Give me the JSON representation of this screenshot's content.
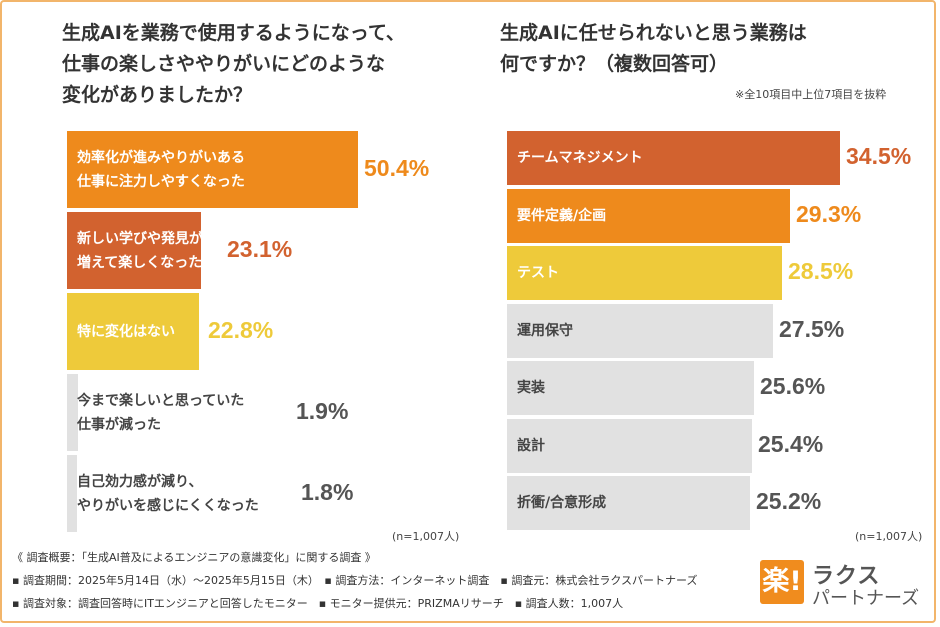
{
  "colors": {
    "orange": "#ee8a1c",
    "rust": "#d2622f",
    "yellow": "#eeca3a",
    "gray": "#e1e1e1",
    "frame": "#f2b56b"
  },
  "chart_data": [
    {
      "type": "bar",
      "orientation": "horizontal",
      "title": "生成AIを業務で使用するようになって、\n仕事の楽しさややりがいにどのような\n変化がありましたか？",
      "categories": [
        "効率化が進みやりがいある\n仕事に注力しやすくなった",
        "新しい学びや発見が\n増えて楽しくなった",
        "特に変化はない",
        "今まで楽しいと思っていた\n仕事が減った",
        "自己効力感が減り、\nやりがいを感じにくくなった"
      ],
      "values": [
        50.4,
        23.1,
        22.8,
        1.9,
        1.8
      ],
      "value_labels": [
        "50.4%",
        "23.1%",
        "22.8%",
        "1.9%",
        "1.8%"
      ],
      "sample_note": "(n=1,007人)",
      "xlim": [
        0,
        100
      ]
    },
    {
      "type": "bar",
      "orientation": "horizontal",
      "title": "生成AIに任せられないと思う業務は\n何ですか？（複数回答可）",
      "subtitle": "※全10項目中上位7項目を抜粋",
      "categories": [
        "チームマネジメント",
        "要件定義/企画",
        "テスト",
        "運用保守",
        "実装",
        "設計",
        "折衝/合意形成"
      ],
      "values": [
        34.5,
        29.3,
        28.5,
        27.5,
        25.6,
        25.4,
        25.2
      ],
      "value_labels": [
        "34.5%",
        "29.3%",
        "28.5%",
        "27.5%",
        "25.6%",
        "25.4%",
        "25.2%"
      ],
      "sample_note": "(n=1,007人)",
      "xlim": [
        0,
        40
      ]
    }
  ],
  "footer": {
    "line1": "《 調査概要：「生成AI普及によるエンジニアの意識変化」に関する調査 》",
    "line2": "▪ 調査期間：2025年5月14日（水）〜2025年5月15日（木）　▪ 調査方法：インターネット調査　▪ 調査元：株式会社ラクスパートナーズ",
    "line3": "▪ 調査対象：調査回答時にITエンジニアと回答したモニター　▪ モニター提供元：PRIZMAリサーチ　▪ 調査人数：1,007人"
  },
  "logo": {
    "mark": "楽!",
    "line1": "ラクス",
    "line2": "パートナーズ"
  }
}
